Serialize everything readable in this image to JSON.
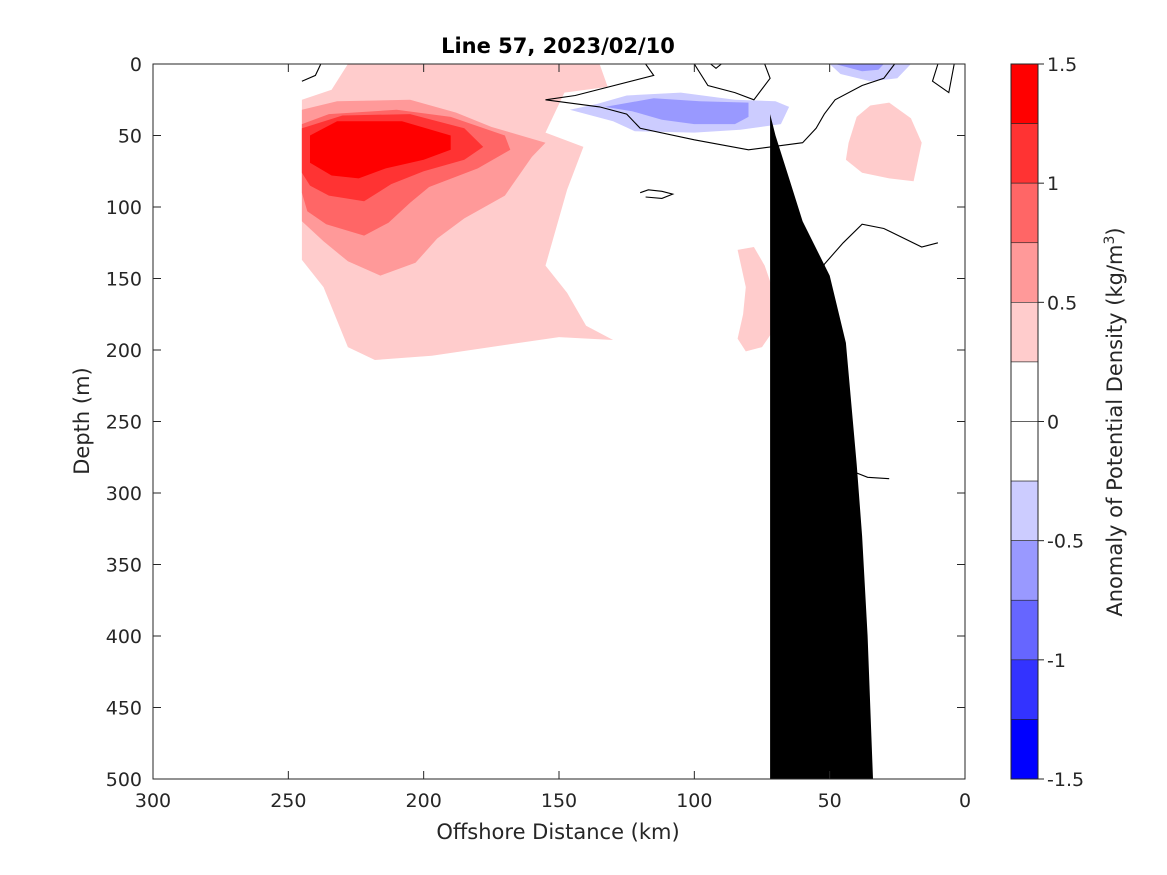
{
  "chart_data": {
    "type": "contour",
    "title": "Line 57, 2023/02/10",
    "xlabel": "Offshore Distance (km)",
    "ylabel": "Depth (m)",
    "colorbar_label": "Anomaly of Potential Density (kg/m",
    "colorbar_label_sup": "3",
    "colorbar_label_end": ")",
    "xlim": [
      300,
      0
    ],
    "ylim": [
      0,
      500
    ],
    "x_reversed": true,
    "y_reversed": true,
    "x_ticks": [
      300,
      250,
      200,
      150,
      100,
      50,
      0
    ],
    "y_ticks": [
      0,
      50,
      100,
      150,
      200,
      250,
      300,
      350,
      400,
      450,
      500
    ],
    "clim": [
      -1.5,
      1.5
    ],
    "colorbar_ticks": [
      {
        "value": 1.5,
        "label": "1.5"
      },
      {
        "value": 1,
        "label": "1"
      },
      {
        "value": 0.5,
        "label": "0.5"
      },
      {
        "value": 0,
        "label": "0"
      },
      {
        "value": -0.5,
        "label": "-0.5"
      },
      {
        "value": -1,
        "label": "-1"
      },
      {
        "value": -1.5,
        "label": "-1.5"
      }
    ],
    "colorbar_levels": [
      {
        "from": 1.25,
        "to": 1.5,
        "color": "#ff0000"
      },
      {
        "from": 1.0,
        "to": 1.25,
        "color": "#ff3333"
      },
      {
        "from": 0.75,
        "to": 1.0,
        "color": "#ff6666"
      },
      {
        "from": 0.5,
        "to": 0.75,
        "color": "#ff9999"
      },
      {
        "from": 0.25,
        "to": 0.5,
        "color": "#ffcccc"
      },
      {
        "from": 0.0,
        "to": 0.25,
        "color": "#ffffff"
      },
      {
        "from": -0.25,
        "to": 0.0,
        "color": "#ffffff"
      },
      {
        "from": -0.5,
        "to": -0.25,
        "color": "#ccccff"
      },
      {
        "from": -0.75,
        "to": -0.5,
        "color": "#9999ff"
      },
      {
        "from": -1.0,
        "to": -0.75,
        "color": "#6666ff"
      },
      {
        "from": -1.25,
        "to": -1.0,
        "color": "#3333ff"
      },
      {
        "from": -1.5,
        "to": -1.25,
        "color": "#0000ff"
      }
    ],
    "filled_regions": [
      {
        "name": "positive-anomaly-0.25",
        "color": "#ffcccc",
        "points": [
          [
            245,
            137
          ],
          [
            245,
            25
          ],
          [
            234,
            18
          ],
          [
            228,
            0
          ],
          [
            135,
            0
          ],
          [
            132,
            16
          ],
          [
            148,
            20
          ],
          [
            155,
            48
          ],
          [
            141,
            58
          ],
          [
            147,
            88
          ],
          [
            155,
            141
          ],
          [
            147,
            160
          ],
          [
            140,
            183
          ],
          [
            130,
            193
          ],
          [
            150,
            191
          ],
          [
            197,
            204
          ],
          [
            218,
            207
          ],
          [
            228,
            198
          ],
          [
            237,
            156
          ]
        ]
      },
      {
        "name": "positive-anomaly-0.5",
        "color": "#ff9999",
        "points": [
          [
            245,
            110
          ],
          [
            245,
            32
          ],
          [
            232,
            26
          ],
          [
            205,
            25
          ],
          [
            188,
            34
          ],
          [
            175,
            44
          ],
          [
            155,
            55
          ],
          [
            160,
            65
          ],
          [
            170,
            92
          ],
          [
            185,
            108
          ],
          [
            195,
            122
          ],
          [
            203,
            139
          ],
          [
            216,
            148
          ],
          [
            228,
            138
          ],
          [
            237,
            124
          ]
        ]
      },
      {
        "name": "positive-anomaly-0.75",
        "color": "#ff6666",
        "points": [
          [
            245,
            90
          ],
          [
            245,
            42
          ],
          [
            235,
            35
          ],
          [
            210,
            32
          ],
          [
            190,
            37
          ],
          [
            170,
            50
          ],
          [
            168,
            60
          ],
          [
            180,
            73
          ],
          [
            198,
            86
          ],
          [
            205,
            97
          ],
          [
            213,
            111
          ],
          [
            222,
            120
          ],
          [
            236,
            112
          ],
          [
            243,
            103
          ]
        ]
      },
      {
        "name": "positive-anomaly-1.0",
        "color": "#ff3333",
        "points": [
          [
            245,
            76
          ],
          [
            245,
            45
          ],
          [
            230,
            36
          ],
          [
            205,
            35
          ],
          [
            185,
            45
          ],
          [
            178,
            58
          ],
          [
            185,
            67
          ],
          [
            200,
            75
          ],
          [
            212,
            84
          ],
          [
            222,
            96
          ],
          [
            235,
            92
          ],
          [
            242,
            85
          ]
        ]
      },
      {
        "name": "positive-anomaly-1.25",
        "color": "#ff0000",
        "points": [
          [
            242,
            69
          ],
          [
            242,
            50
          ],
          [
            232,
            40
          ],
          [
            208,
            40
          ],
          [
            190,
            50
          ],
          [
            190,
            60
          ],
          [
            200,
            67
          ],
          [
            214,
            73
          ],
          [
            224,
            80
          ],
          [
            234,
            78
          ]
        ]
      },
      {
        "name": "positive-anomaly-east",
        "color": "#ffcccc",
        "points": [
          [
            43,
            55
          ],
          [
            40,
            37
          ],
          [
            35,
            29
          ],
          [
            28,
            27
          ],
          [
            20,
            38
          ],
          [
            16,
            55
          ],
          [
            19,
            82
          ],
          [
            28,
            80
          ],
          [
            38,
            76
          ],
          [
            44,
            67
          ]
        ]
      },
      {
        "name": "positive-anomaly-mid",
        "color": "#ffcccc",
        "points": [
          [
            81,
            156
          ],
          [
            84,
            130
          ],
          [
            78,
            128
          ],
          [
            74,
            141
          ],
          [
            70,
            163
          ],
          [
            71,
            187
          ],
          [
            75,
            198
          ],
          [
            81,
            201
          ],
          [
            84,
            192
          ],
          [
            82,
            175
          ]
        ]
      },
      {
        "name": "negative-anomaly-0.25",
        "color": "#ccccff",
        "points": [
          [
            136,
            28
          ],
          [
            146,
            32
          ],
          [
            130,
            40
          ],
          [
            122,
            47
          ],
          [
            100,
            48
          ],
          [
            83,
            46
          ],
          [
            68,
            42
          ],
          [
            65,
            30
          ],
          [
            70,
            26
          ],
          [
            85,
            25
          ],
          [
            105,
            20
          ],
          [
            125,
            22
          ]
        ]
      },
      {
        "name": "negative-anomaly-0.5",
        "color": "#9999ff",
        "points": [
          [
            133,
            30
          ],
          [
            123,
            33
          ],
          [
            112,
            39
          ],
          [
            100,
            42
          ],
          [
            85,
            42
          ],
          [
            80,
            37
          ],
          [
            80,
            27
          ],
          [
            98,
            26
          ],
          [
            115,
            24
          ]
        ]
      },
      {
        "name": "negative-anomaly-top-0.25",
        "color": "#ccccff",
        "points": [
          [
            50,
            0
          ],
          [
            46,
            7
          ],
          [
            35,
            12
          ],
          [
            25,
            10
          ],
          [
            20,
            0
          ]
        ]
      },
      {
        "name": "negative-anomaly-top-0.5",
        "color": "#9999ff",
        "points": [
          [
            48,
            0
          ],
          [
            38,
            5
          ],
          [
            32,
            4
          ],
          [
            30,
            0
          ]
        ]
      }
    ],
    "contour_lines": [
      {
        "name": "zero-contour-west",
        "points": [
          [
            245,
            12
          ],
          [
            240,
            8
          ],
          [
            238,
            0
          ]
        ]
      },
      {
        "name": "zero-contour-main",
        "points": [
          [
            118,
            0
          ],
          [
            115,
            8
          ],
          [
            144,
            22
          ],
          [
            155,
            25
          ],
          [
            135,
            30
          ],
          [
            125,
            35
          ],
          [
            120,
            45
          ],
          [
            100,
            53
          ],
          [
            80,
            60
          ],
          [
            60,
            55
          ],
          [
            55,
            45
          ],
          [
            52,
            35
          ],
          [
            48,
            25
          ],
          [
            38,
            15
          ],
          [
            30,
            10
          ],
          [
            26,
            0
          ]
        ]
      },
      {
        "name": "zero-contour-top-a",
        "points": [
          [
            100,
            0
          ],
          [
            95,
            15
          ],
          [
            85,
            20
          ],
          [
            78,
            25
          ],
          [
            72,
            10
          ],
          [
            74,
            0
          ]
        ]
      },
      {
        "name": "zero-contour-top-b",
        "points": [
          [
            94,
            0
          ],
          [
            92,
            3
          ],
          [
            90,
            0
          ]
        ]
      },
      {
        "name": "zero-contour-small",
        "points": [
          [
            120,
            90
          ],
          [
            117,
            88
          ],
          [
            112,
            89
          ],
          [
            108,
            91
          ],
          [
            112,
            94
          ],
          [
            118,
            93
          ]
        ]
      },
      {
        "name": "zero-contour-east-top",
        "points": [
          [
            10,
            0
          ],
          [
            12,
            12
          ],
          [
            6,
            20
          ],
          [
            4,
            0
          ]
        ]
      },
      {
        "name": "zero-contour-coastal",
        "points": [
          [
            10,
            125
          ],
          [
            16,
            128
          ],
          [
            30,
            115
          ],
          [
            38,
            112
          ],
          [
            45,
            125
          ],
          [
            52,
            140
          ],
          [
            54,
            165
          ],
          [
            53,
            200
          ],
          [
            50,
            240
          ],
          [
            46,
            270
          ],
          [
            44,
            283
          ],
          [
            36,
            289
          ],
          [
            28,
            290
          ]
        ]
      }
    ],
    "land_mask": {
      "color": "#000000",
      "points": [
        [
          34,
          500
        ],
        [
          36,
          400
        ],
        [
          38,
          330
        ],
        [
          40,
          280
        ],
        [
          44,
          195
        ],
        [
          50,
          148
        ],
        [
          60,
          110
        ],
        [
          65,
          80
        ],
        [
          70,
          50
        ],
        [
          72,
          35
        ],
        [
          72,
          500
        ]
      ]
    }
  }
}
